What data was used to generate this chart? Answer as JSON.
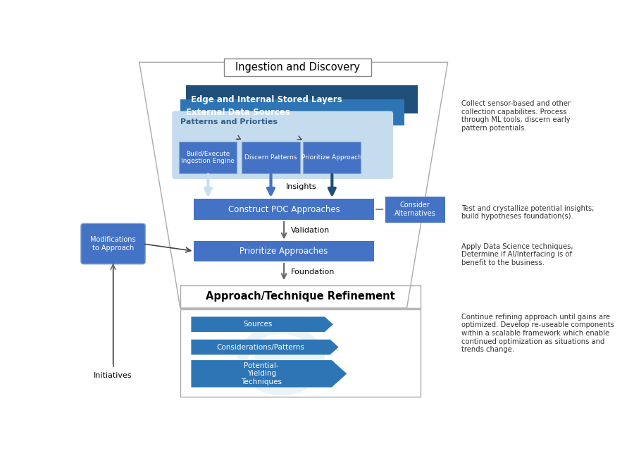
{
  "title": "Ingestion and Discovery",
  "bg_color": "#ffffff",
  "dark_blue": "#1f4e79",
  "mid_blue": "#2e75b6",
  "light_blue": "#9dc3e6",
  "pale_blue": "#c5dcee",
  "box_blue": "#4472c4",
  "annotations": {
    "top_right": "Collect sensor-based and other\ncollection capabilites. Process\nthrough ML tools, discern early\npattern potentials.",
    "mid_right": "Test and crystallize potential insights;\nbuild hypotheses foundation(s).",
    "lower_right": "Apply Data Science techniques,\nDetermine if AI/Interfacing is of\nbenefit to the business.",
    "bottom_right": "Continue refining approach until gains are\noptimized. Develop re-useable components\nwithin a scalable framework which enable\ncontinued optimization as situations and\ntrends change."
  },
  "refinement_title": "Approach/Technique Refinement",
  "layer_labels": [
    "Edge and Internal Stored Layers",
    "External Data Sources",
    "Patterns and Priorties"
  ],
  "inner_boxes": [
    "Build/Execute\nIngestion Engine",
    "Discern Patterns",
    "Prioritize Approach"
  ],
  "flow_boxes": [
    "Construct POC Approaches",
    "Prioritize Approaches"
  ],
  "side_box": "Consider\nAlternatives",
  "modifications_box": "Modifications\nto Approach",
  "initiatives_label": "Initiatives",
  "insights_label": "Insights",
  "validation_label": "Validation",
  "foundation_label": "Foundation",
  "arrow_sources": "Sources",
  "arrow_considerations": "Considerations/Patterns",
  "arrow_potential": "Potential-\nYielding\nTechniques"
}
